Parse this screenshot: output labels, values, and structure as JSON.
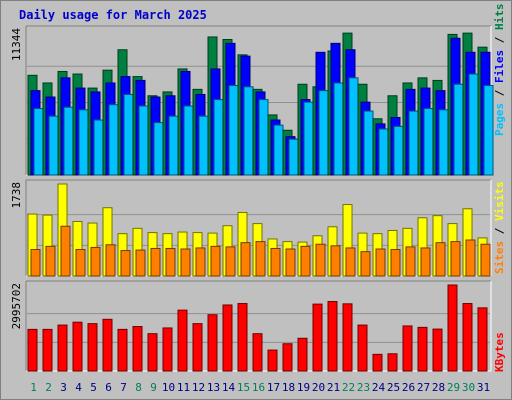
{
  "chart_data": {
    "type": "bar",
    "title": "Daily usage for March 2025",
    "categories": [
      "1",
      "2",
      "3",
      "4",
      "5",
      "6",
      "7",
      "8",
      "9",
      "10",
      "11",
      "12",
      "13",
      "14",
      "15",
      "16",
      "17",
      "18",
      "19",
      "20",
      "21",
      "22",
      "23",
      "24",
      "25",
      "26",
      "27",
      "28",
      "29",
      "30",
      "31"
    ],
    "weekend_days": [
      "1",
      "2",
      "8",
      "9",
      "15",
      "16",
      "22",
      "23",
      "29",
      "30"
    ],
    "panels": [
      {
        "id": "hits-files-pages",
        "max_label": "11344",
        "ymax": 11344,
        "right_labels": [
          "Pages",
          "Files",
          "Hits"
        ],
        "series": [
          {
            "name": "Hits",
            "color": "#008040",
            "values": [
              7800,
              7200,
              8100,
              7900,
              6800,
              8200,
              9800,
              7700,
              6200,
              6500,
              8300,
              6700,
              10800,
              10600,
              9400,
              6700,
              4700,
              3500,
              7100,
              6900,
              9700,
              11100,
              7100,
              4400,
              6200,
              7200,
              7600,
              7400,
              11000,
              11100,
              10000
            ]
          },
          {
            "name": "Files",
            "color": "#0000ff",
            "values": [
              6600,
              6100,
              7600,
              6800,
              6500,
              7200,
              7700,
              7400,
              6100,
              6200,
              8100,
              6300,
              8300,
              10300,
              9300,
              6500,
              4300,
              3000,
              5900,
              9600,
              10300,
              9800,
              5700,
              4000,
              4500,
              6700,
              6800,
              6600,
              10700,
              9600,
              9600
            ]
          },
          {
            "name": "Pages",
            "color": "#00c0ff",
            "values": [
              5200,
              4600,
              5300,
              5100,
              4300,
              5500,
              6300,
              5400,
              4100,
              4600,
              5400,
              4600,
              5900,
              7000,
              6900,
              5900,
              3900,
              2800,
              5700,
              6600,
              7200,
              7600,
              5000,
              3600,
              3800,
              5000,
              5200,
              5100,
              7100,
              7900,
              7000
            ]
          }
        ]
      },
      {
        "id": "visits-sites",
        "max_label": "1738",
        "ymax": 1738,
        "right_labels": [
          "Sites",
          "Visits"
        ],
        "series": [
          {
            "name": "Visits",
            "color": "#ffff00",
            "values": [
              1170,
              1150,
              1738,
              1030,
              1000,
              1290,
              800,
              900,
              820,
              800,
              830,
              820,
              810,
              950,
              1200,
              990,
              700,
              650,
              640,
              760,
              930,
              1350,
              810,
              800,
              860,
              900,
              1100,
              1140,
              990,
              1270,
              720
            ]
          },
          {
            "name": "Sites",
            "color": "#ff8000",
            "values": [
              500,
              560,
              940,
              500,
              540,
              590,
              480,
              490,
              520,
              520,
              510,
              530,
              560,
              550,
              630,
              650,
              520,
              510,
              560,
              600,
              570,
              530,
              460,
              510,
              500,
              550,
              530,
              630,
              650,
              680,
              600
            ]
          }
        ]
      },
      {
        "id": "kbytes",
        "max_label": "2995702",
        "ymax": 2995702,
        "right_labels": [
          "KBytes"
        ],
        "series": [
          {
            "name": "KBytes",
            "color": "#ff0000",
            "values": [
              1450000,
              1450000,
              1600000,
              1700000,
              1650000,
              1800000,
              1450000,
              1550000,
              1300000,
              1500000,
              2120000,
              1650000,
              1960000,
              2300000,
              2350000,
              1300000,
              730000,
              950000,
              1140000,
              2330000,
              2420000,
              2340000,
              1600000,
              580000,
              600000,
              1570000,
              1520000,
              1460000,
              2995702,
              2350000,
              2200000
            ]
          }
        ]
      }
    ]
  }
}
